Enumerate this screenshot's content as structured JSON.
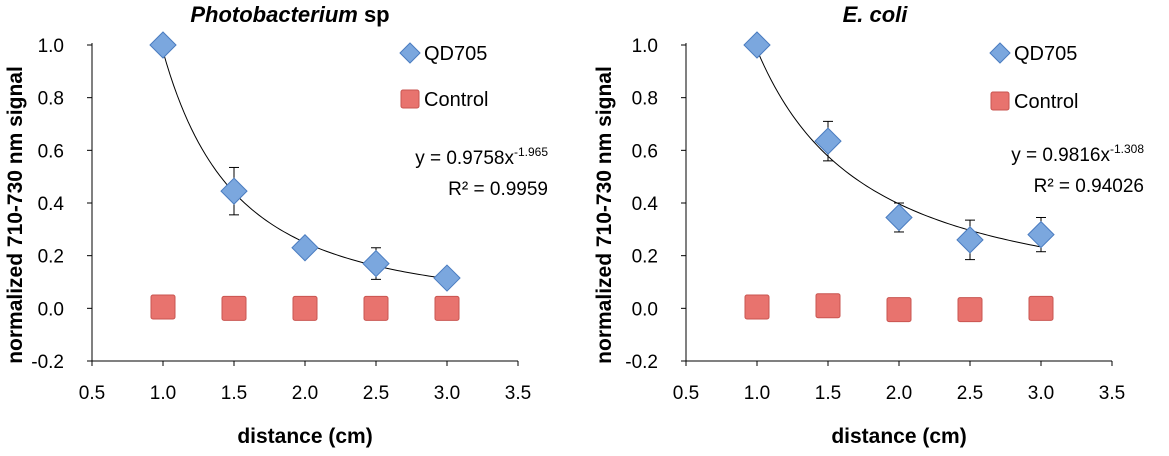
{
  "chart_data": [
    {
      "type": "scatter",
      "title": "Photobacterium",
      "title_suffix": " sp",
      "xlabel": "distance (cm)",
      "ylabel": "normalized 710-730 nm signal",
      "xlim": [
        0.5,
        3.5
      ],
      "ylim": [
        -0.2,
        1.0
      ],
      "x_ticks": [
        "0.5",
        "1.0",
        "1.5",
        "2.0",
        "2.5",
        "3.0",
        "3.5"
      ],
      "y_ticks": [
        "-0.2",
        "0.0",
        "0.2",
        "0.4",
        "0.6",
        "0.8",
        "1.0"
      ],
      "legend_position": "top-right",
      "series": [
        {
          "name": "QD705",
          "marker": "diamond",
          "color": "#7BA7DE",
          "x": [
            1.0,
            1.5,
            2.0,
            2.5,
            3.0
          ],
          "y": [
            1.0,
            0.445,
            0.23,
            0.17,
            0.115
          ],
          "err": [
            0.0,
            0.09,
            0.015,
            0.06,
            0.03
          ]
        },
        {
          "name": "Control",
          "marker": "square",
          "color": "#E8736E",
          "x": [
            1.0,
            1.5,
            2.0,
            2.5,
            3.0
          ],
          "y": [
            0.005,
            0.0,
            0.0,
            0.0,
            0.0
          ]
        }
      ],
      "trendline": {
        "type": "power",
        "a": 0.9758,
        "b": -1.965,
        "x_range": [
          1.0,
          3.0
        ]
      },
      "equation": {
        "prefix": "y = 0.9758x",
        "exponent": "-1.965",
        "r2": "R² = 0.9959"
      }
    },
    {
      "type": "scatter",
      "title": "E. coli",
      "title_suffix": "",
      "xlabel": "distance (cm)",
      "ylabel": "normalized 710-730 nm signal",
      "xlim": [
        0.5,
        3.5
      ],
      "ylim": [
        -0.2,
        1.0
      ],
      "x_ticks": [
        "0.5",
        "1.0",
        "1.5",
        "2.0",
        "2.5",
        "3.0",
        "3.5"
      ],
      "y_ticks": [
        "-0.2",
        "0.0",
        "0.2",
        "0.4",
        "0.6",
        "0.8",
        "1.0"
      ],
      "legend_position": "top-right",
      "series": [
        {
          "name": "QD705",
          "marker": "diamond",
          "color": "#7BA7DE",
          "x": [
            1.0,
            1.5,
            2.0,
            2.5,
            3.0
          ],
          "y": [
            1.0,
            0.635,
            0.345,
            0.26,
            0.28
          ],
          "err": [
            0.0,
            0.075,
            0.055,
            0.075,
            0.065
          ]
        },
        {
          "name": "Control",
          "marker": "square",
          "color": "#E8736E",
          "x": [
            1.0,
            1.5,
            2.0,
            2.5,
            3.0
          ],
          "y": [
            0.005,
            0.01,
            -0.005,
            -0.005,
            0.0
          ]
        }
      ],
      "trendline": {
        "type": "power",
        "a": 0.9816,
        "b": -1.308,
        "x_range": [
          1.0,
          3.0
        ]
      },
      "equation": {
        "prefix": "y = 0.9816x",
        "exponent": "-1.308",
        "r2": "R² = 0.94026"
      }
    }
  ]
}
